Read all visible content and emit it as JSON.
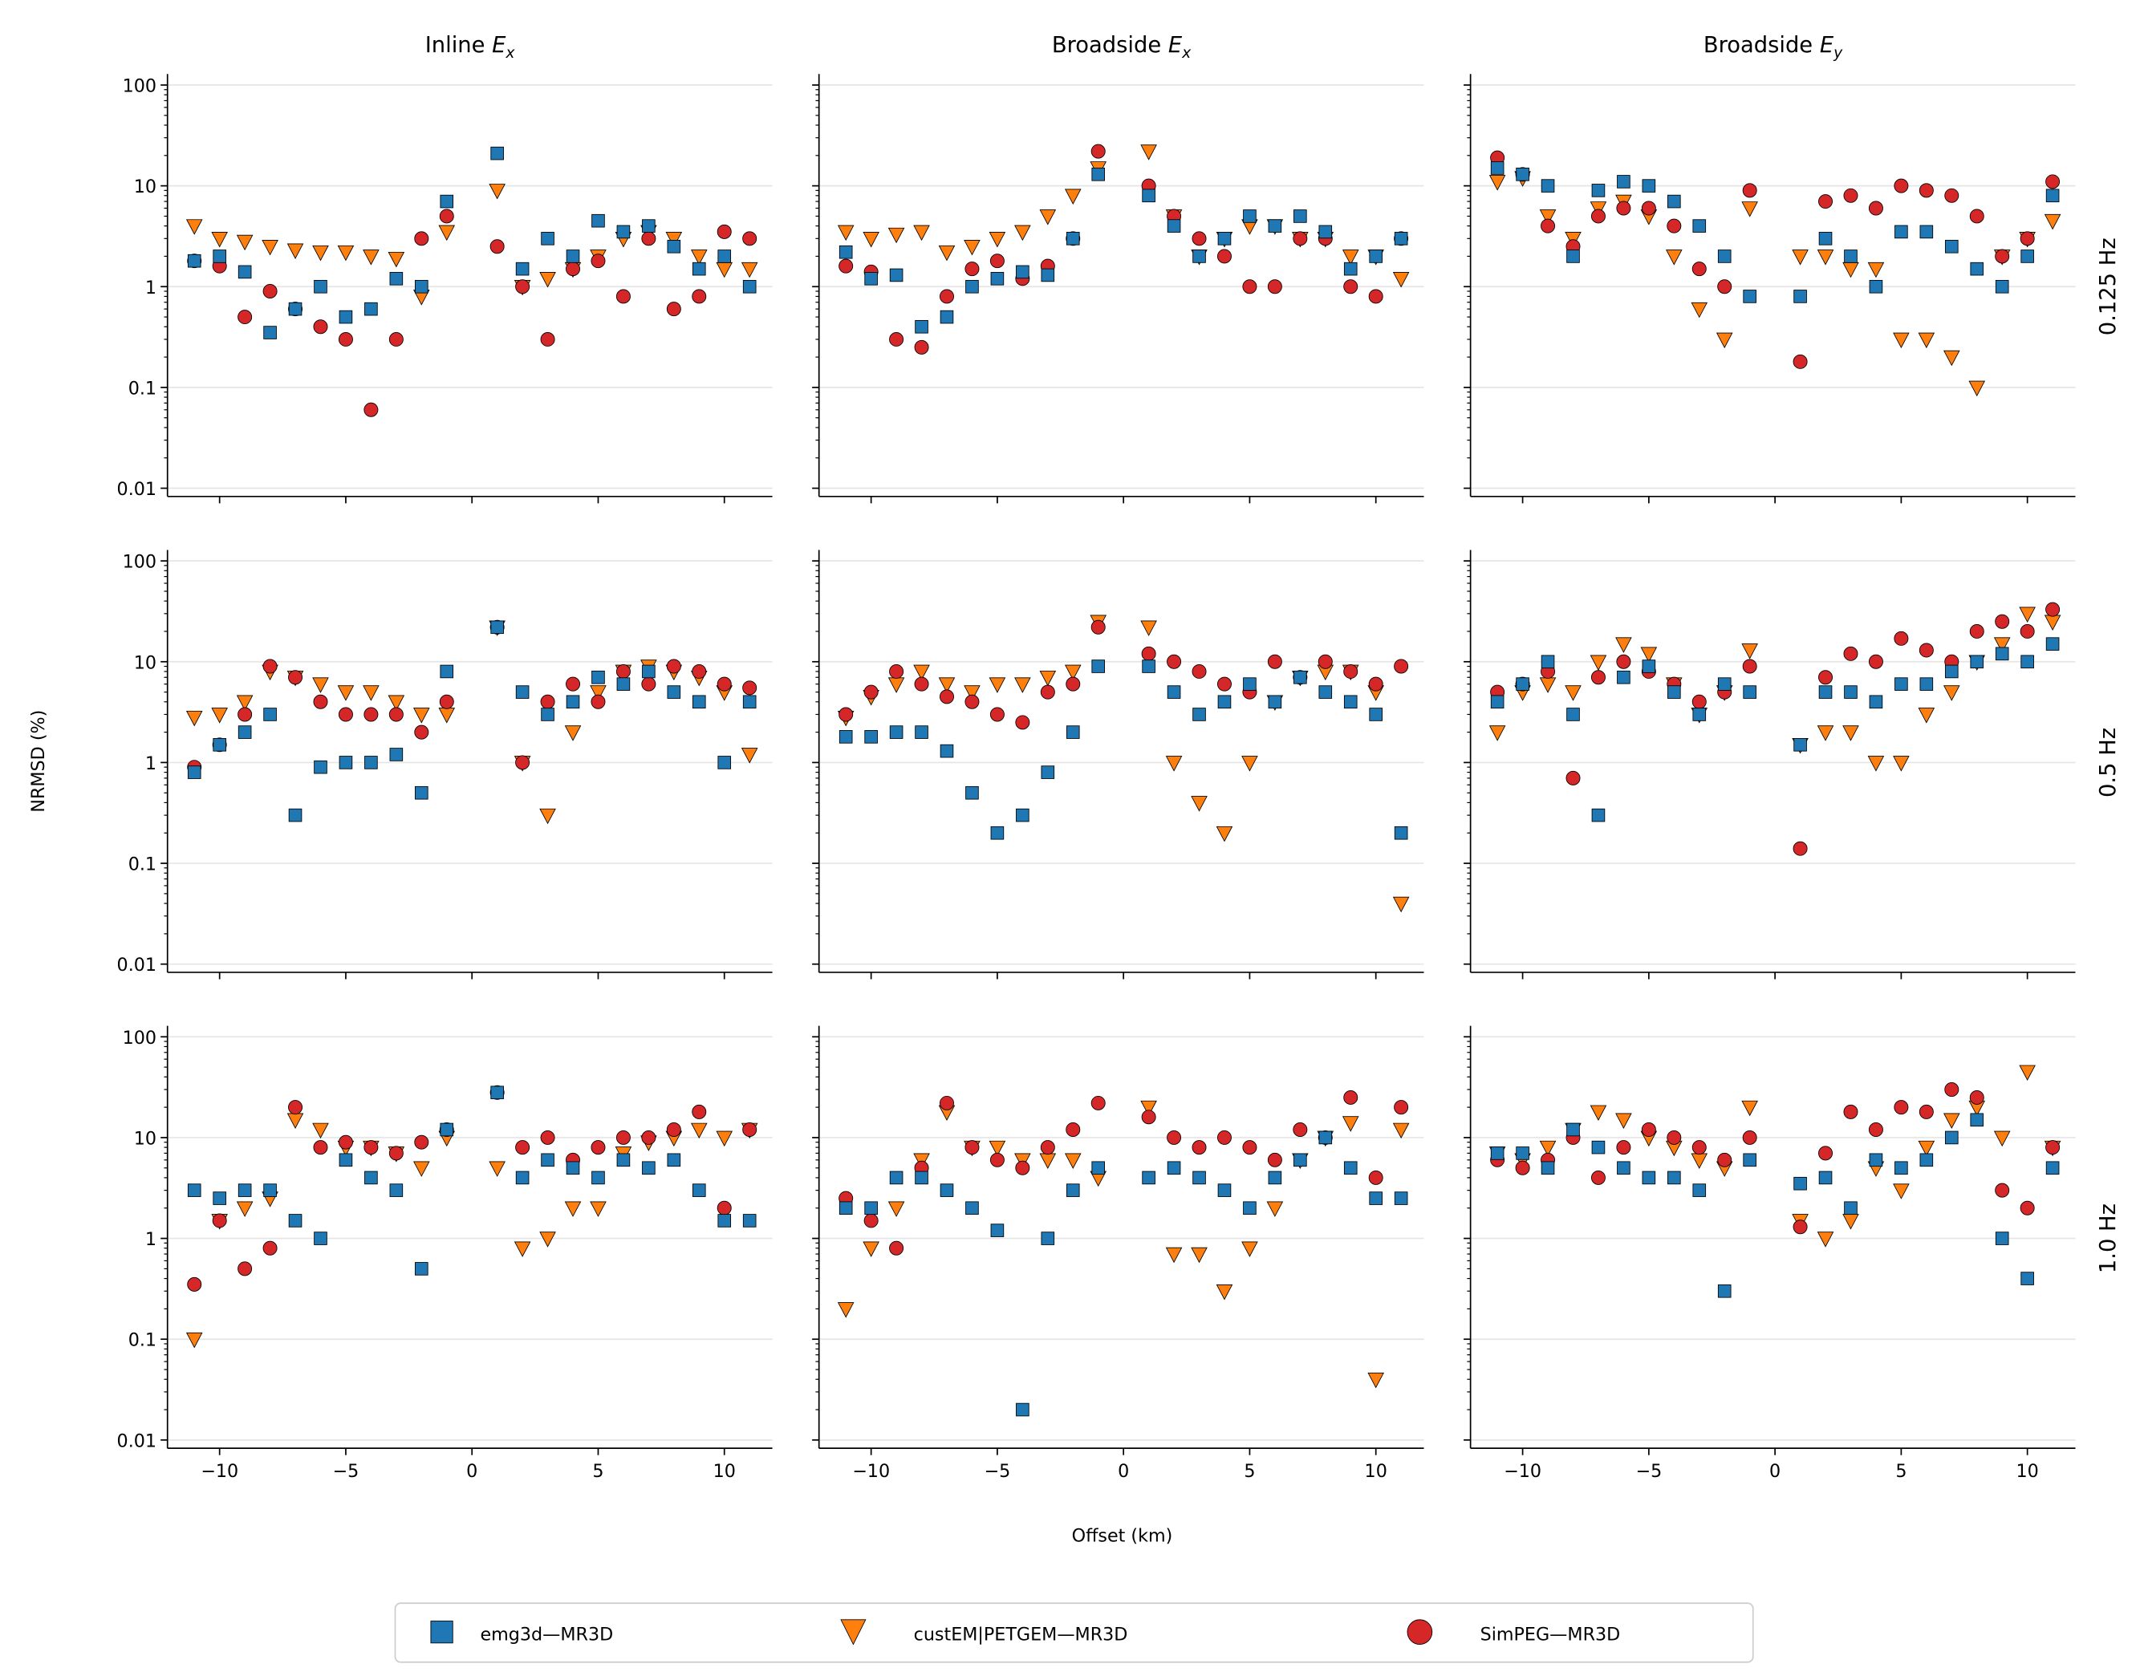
{
  "chart_data": {
    "type": "scatter",
    "column_titles": [
      "Inline E",
      "Broadside E",
      "Broadside E"
    ],
    "column_subscripts": [
      "x",
      "x",
      "y"
    ],
    "row_labels": [
      "0.125 Hz",
      "0.5 Hz",
      "1.0 Hz"
    ],
    "xlabel": "Offset (km)",
    "ylabel": "NRMSD (%)",
    "yscale": "log",
    "ylim": [
      0.008,
      120
    ],
    "xlim": [
      -12,
      12
    ],
    "yticks": [
      0.01,
      0.1,
      1,
      10,
      100
    ],
    "ytick_labels": [
      "0.01",
      "0.1",
      "1",
      "10",
      "100"
    ],
    "xticks": [
      -10,
      -5,
      0,
      5,
      10
    ],
    "xtick_labels": [
      "−10",
      "−5",
      "0",
      "5",
      "10"
    ],
    "grid": "horizontal",
    "legend_placement": "bottom-center",
    "series_styles": [
      {
        "name": "emg3d—MR3D",
        "marker": "square",
        "color": "#1f77b4"
      },
      {
        "name": "custEM|PETGEM—MR3D",
        "marker": "triangle-down",
        "color": "#ff7f0e"
      },
      {
        "name": "SimPEG—MR3D",
        "marker": "circle",
        "color": "#d62728"
      }
    ],
    "x": [
      -11,
      -10,
      -9,
      -8,
      -7,
      -6,
      -5,
      -4,
      -3,
      -2,
      -1,
      1,
      2,
      3,
      4,
      5,
      6,
      7,
      8,
      9,
      10,
      11
    ],
    "panels": [
      {
        "row": 0,
        "col": 0,
        "series": [
          [
            1.8,
            2.0,
            1.4,
            0.35,
            0.6,
            1.0,
            0.5,
            0.6,
            1.2,
            1.0,
            7,
            21,
            1.5,
            3,
            2,
            4.5,
            3.5,
            4,
            2.5,
            1.5,
            2,
            1.0
          ],
          [
            4,
            3,
            2.8,
            2.5,
            2.3,
            2.2,
            2.2,
            2.0,
            1.9,
            0.8,
            3.5,
            9,
            1.0,
            1.2,
            1.5,
            2,
            3,
            3.5,
            3,
            2,
            1.5,
            1.5
          ],
          [
            1.8,
            1.6,
            0.5,
            0.9,
            0.6,
            0.4,
            0.3,
            0.06,
            0.3,
            3,
            5,
            2.5,
            1.0,
            0.3,
            1.5,
            1.8,
            0.8,
            3,
            0.6,
            0.8,
            3.5,
            3
          ]
        ]
      },
      {
        "row": 0,
        "col": 1,
        "series": [
          [
            2.2,
            1.2,
            1.3,
            0.4,
            0.5,
            1.0,
            1.2,
            1.4,
            1.3,
            3,
            13,
            8,
            4,
            2,
            3,
            5,
            4,
            5,
            3.5,
            1.5,
            2,
            3
          ],
          [
            3.5,
            3,
            3.3,
            3.5,
            2.2,
            2.5,
            3,
            3.5,
            5,
            8,
            15,
            22,
            5,
            2,
            3,
            4,
            4,
            3,
            3,
            2,
            2,
            1.2
          ],
          [
            1.6,
            1.4,
            0.3,
            0.25,
            0.8,
            1.5,
            1.8,
            1.2,
            1.6,
            3,
            22,
            10,
            5,
            3,
            2,
            1,
            1,
            3,
            3,
            1,
            0.8,
            3
          ]
        ]
      },
      {
        "row": 0,
        "col": 2,
        "series": [
          [
            15,
            13,
            10,
            2,
            9,
            11,
            10,
            7,
            4,
            2,
            0.8,
            0.8,
            3,
            2,
            1,
            3.5,
            3.5,
            2.5,
            1.5,
            1,
            2,
            8
          ],
          [
            11,
            12,
            5,
            3,
            6,
            7,
            5,
            2,
            0.6,
            0.3,
            6,
            2,
            2,
            1.5,
            1.5,
            0.3,
            0.3,
            0.2,
            0.1,
            2,
            3,
            4.5
          ],
          [
            19,
            13,
            4,
            2.5,
            5,
            6,
            6,
            4,
            1.5,
            1,
            9,
            0.18,
            7,
            8,
            6,
            10,
            9,
            8,
            5,
            2,
            3,
            11
          ]
        ]
      },
      {
        "row": 1,
        "col": 0,
        "series": [
          [
            0.8,
            1.5,
            2,
            3,
            0.3,
            0.9,
            1,
            1,
            1.2,
            0.5,
            8,
            22,
            5,
            3,
            4,
            7,
            6,
            8,
            5,
            4,
            1,
            4
          ],
          [
            2.8,
            3,
            4,
            8,
            7,
            6,
            5,
            5,
            4,
            3,
            3,
            22,
            1,
            0.3,
            2,
            5,
            8,
            9,
            8,
            7,
            5,
            1.2
          ],
          [
            0.9,
            1.5,
            3,
            9,
            7,
            4,
            3,
            3,
            3,
            2,
            4,
            22,
            1,
            4,
            6,
            4,
            8,
            6,
            9,
            8,
            6,
            5.5
          ]
        ]
      },
      {
        "row": 1,
        "col": 1,
        "series": [
          [
            1.8,
            1.8,
            2,
            2,
            1.3,
            0.5,
            0.2,
            0.3,
            0.8,
            2,
            9,
            9,
            5,
            3,
            4,
            6,
            4,
            7,
            5,
            4,
            3,
            0.2
          ],
          [
            2.8,
            4.5,
            6,
            8,
            6,
            5,
            6,
            6,
            7,
            8,
            25,
            22,
            1,
            0.4,
            0.2,
            1,
            4,
            7,
            8,
            8,
            5,
            0.04
          ],
          [
            3,
            5,
            8,
            6,
            4.5,
            4,
            3,
            2.5,
            5,
            6,
            22,
            12,
            10,
            8,
            6,
            5,
            10,
            7,
            10,
            8,
            6,
            9
          ]
        ]
      },
      {
        "row": 1,
        "col": 2,
        "series": [
          [
            4,
            6,
            10,
            3,
            0.3,
            7,
            9,
            5,
            3,
            6,
            5,
            1.5,
            5,
            5,
            4,
            6,
            6,
            8,
            10,
            12,
            10,
            15
          ],
          [
            2,
            5,
            6,
            5,
            10,
            15,
            12,
            6,
            3,
            5,
            13,
            1.5,
            2,
            2,
            1,
            1,
            3,
            5,
            10,
            15,
            30,
            25
          ],
          [
            5,
            6,
            8,
            0.7,
            7,
            10,
            8,
            6,
            4,
            5,
            9,
            0.14,
            7,
            12,
            10,
            17,
            13,
            10,
            20,
            25,
            20,
            33
          ]
        ]
      },
      {
        "row": 2,
        "col": 0,
        "series": [
          [
            3,
            2.5,
            3,
            3,
            1.5,
            1,
            6,
            4,
            3,
            0.5,
            12,
            28,
            4,
            6,
            5,
            4,
            6,
            5,
            6,
            3,
            1.5,
            1.5
          ],
          [
            0.1,
            1.5,
            2,
            2.5,
            15,
            12,
            8,
            8,
            7,
            5,
            10,
            5,
            0.8,
            1,
            2,
            2,
            7,
            9,
            10,
            12,
            10,
            12
          ],
          [
            0.35,
            1.5,
            0.5,
            0.8,
            20,
            8,
            9,
            8,
            7,
            9,
            12,
            28,
            8,
            10,
            6,
            8,
            10,
            10,
            12,
            18,
            2,
            12
          ]
        ]
      },
      {
        "row": 2,
        "col": 1,
        "series": [
          [
            2,
            2,
            4,
            4,
            3,
            2,
            1.2,
            0.02,
            1,
            3,
            5,
            4,
            5,
            4,
            3,
            2,
            4,
            6,
            10,
            5,
            2.5,
            2.5
          ],
          [
            0.2,
            0.8,
            2,
            6,
            18,
            8,
            8,
            6,
            6,
            6,
            4,
            20,
            0.7,
            0.7,
            0.3,
            0.8,
            2,
            6,
            10,
            14,
            0.04,
            12
          ],
          [
            2.5,
            1.5,
            0.8,
            5,
            22,
            8,
            6,
            5,
            8,
            12,
            22,
            16,
            10,
            8,
            10,
            8,
            6,
            12,
            10,
            25,
            4,
            20
          ]
        ]
      },
      {
        "row": 2,
        "col": 2,
        "series": [
          [
            7,
            7,
            5,
            12,
            8,
            5,
            4,
            4,
            3,
            0.3,
            6,
            3.5,
            4,
            2,
            6,
            5,
            6,
            10,
            15,
            1,
            0.4,
            5
          ],
          [
            7,
            6,
            8,
            12,
            18,
            15,
            10,
            8,
            6,
            5,
            20,
            1.5,
            1,
            1.5,
            5,
            3,
            8,
            15,
            20,
            10,
            45,
            8
          ],
          [
            6,
            5,
            6,
            10,
            4,
            8,
            12,
            10,
            8,
            6,
            10,
            1.3,
            7,
            18,
            12,
            20,
            18,
            30,
            25,
            3,
            2,
            8
          ]
        ]
      }
    ]
  }
}
